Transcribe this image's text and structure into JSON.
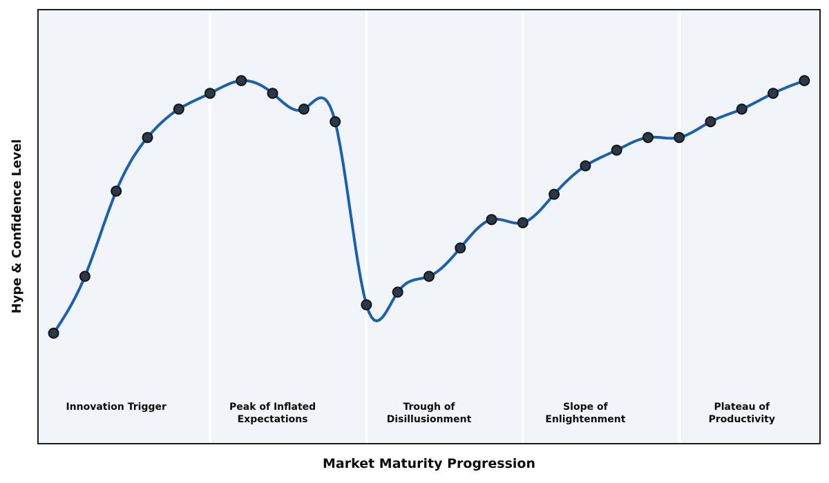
{
  "figure": {
    "background": "#ffffff",
    "plot_background": "#f1f5f9",
    "border_color": "#1c1c1c",
    "divider_color": "#ffffff",
    "text_color": "#0d0d0d"
  },
  "chart_data": {
    "type": "line",
    "title": "",
    "xlabel": "Market Maturity Progression",
    "ylabel": "Hype & Confidence Level",
    "x": [
      0,
      1,
      2,
      3,
      4,
      5,
      6,
      7,
      8,
      9,
      10,
      11,
      12,
      13,
      14,
      15,
      16,
      17,
      18,
      19,
      20,
      21,
      22,
      23,
      24
    ],
    "values": [
      15,
      33,
      60,
      77,
      86,
      91,
      95,
      91,
      86,
      82,
      24,
      28,
      33,
      42,
      51,
      50,
      59,
      68,
      73,
      77,
      77,
      82,
      86,
      91,
      95
    ],
    "xlim": [
      -0.5,
      24.5
    ],
    "ylim": [
      -20,
      117.5
    ],
    "grid": false,
    "legend": "none",
    "interpolation": "cubic-spline",
    "line_color": "#1a5fb4",
    "marker_color": "#2c3845",
    "marker_edge_color": "#101418",
    "phase_dividers_index": [
      5,
      10,
      15,
      20
    ],
    "phases": [
      {
        "center_index": 2,
        "label_lines": [
          "Innovation Trigger"
        ]
      },
      {
        "center_index": 7,
        "label_lines": [
          "Peak of Inflated",
          "Expectations"
        ]
      },
      {
        "center_index": 12,
        "label_lines": [
          "Trough of",
          "Disillusionment"
        ]
      },
      {
        "center_index": 17,
        "label_lines": [
          "Slope of",
          "Enlightenment"
        ]
      },
      {
        "center_index": 22,
        "label_lines": [
          "Plateau of",
          "Productivity"
        ]
      }
    ]
  }
}
